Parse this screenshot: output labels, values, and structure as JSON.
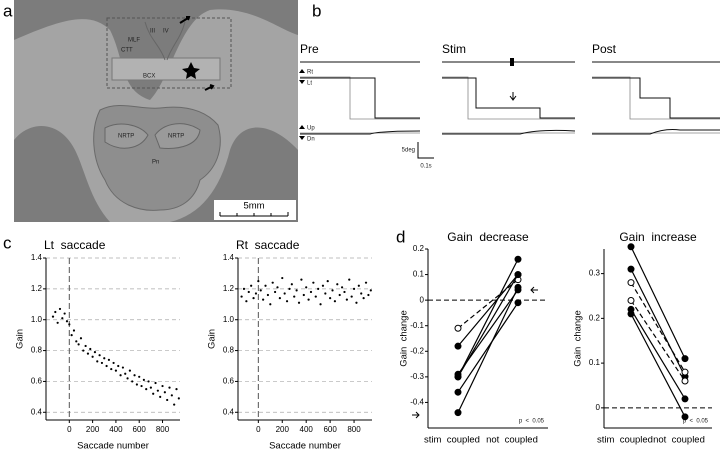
{
  "panel_labels": [
    "a",
    "b",
    "c",
    "d"
  ],
  "panel_a": {
    "regions": [
      "III",
      "IV",
      "MLF",
      "CTT",
      "BCX",
      "NRTP",
      "NRTP",
      "Pn"
    ],
    "scale_bar": "5mm"
  },
  "panel_b": {
    "conditions": [
      "Pre",
      "Stim",
      "Post"
    ],
    "horizontal_labels": [
      "Rt",
      "Lt"
    ],
    "vertical_labels": [
      "Up",
      "Dn"
    ],
    "scale_amplitude": "5deg",
    "scale_time": "0.1s"
  },
  "chart_data": [
    {
      "type": "scatter",
      "title": "Lt  saccade",
      "x_label": "Saccade number",
      "y_label": "Gain",
      "color": "#000000",
      "grid": true,
      "xlim": [
        -200,
        950
      ],
      "xticks": [
        0,
        200,
        400,
        600,
        800
      ],
      "ylim": [
        0.35,
        1.4
      ],
      "yticks": [
        0.4,
        0.6,
        0.8,
        {
          "value": 1,
          "label": "1.0"
        },
        1.2,
        1.4
      ],
      "x": [
        -140,
        -120,
        -100,
        -80,
        -60,
        -40,
        -20,
        0,
        20,
        40,
        60,
        80,
        100,
        120,
        140,
        160,
        180,
        200,
        220,
        240,
        260,
        280,
        300,
        320,
        340,
        360,
        380,
        400,
        420,
        440,
        460,
        480,
        500,
        520,
        540,
        560,
        580,
        600,
        620,
        640,
        660,
        680,
        700,
        720,
        740,
        760,
        780,
        800,
        820,
        840,
        860,
        880,
        900,
        920,
        940
      ],
      "values": [
        1.02,
        1.05,
        0.98,
        1.07,
        1.01,
        1.04,
        0.99,
        0.97,
        0.9,
        0.93,
        0.86,
        0.84,
        0.88,
        0.8,
        0.83,
        0.78,
        0.81,
        0.76,
        0.79,
        0.73,
        0.77,
        0.72,
        0.75,
        0.7,
        0.74,
        0.68,
        0.72,
        0.67,
        0.7,
        0.64,
        0.69,
        0.65,
        0.62,
        0.67,
        0.6,
        0.64,
        0.58,
        0.63,
        0.57,
        0.61,
        0.55,
        0.6,
        0.56,
        0.52,
        0.59,
        0.54,
        0.5,
        0.57,
        0.53,
        0.48,
        0.56,
        0.51,
        0.45,
        0.55,
        0.49
      ]
    },
    {
      "type": "scatter",
      "title": "Rt  saccade",
      "x_label": "Saccade number",
      "y_label": "Gain",
      "color": "#000000",
      "grid": true,
      "xlim": [
        -170,
        950
      ],
      "xticks": [
        0,
        200,
        400,
        600,
        800
      ],
      "ylim": [
        0.35,
        1.4
      ],
      "yticks": [
        0.4,
        0.6,
        0.8,
        {
          "value": 1,
          "label": "1.0"
        },
        1.2,
        1.4
      ],
      "x": [
        -140,
        -120,
        -100,
        -80,
        -60,
        -40,
        -20,
        0,
        20,
        40,
        60,
        80,
        100,
        120,
        140,
        160,
        180,
        200,
        220,
        240,
        260,
        280,
        300,
        320,
        340,
        360,
        380,
        400,
        420,
        440,
        460,
        480,
        500,
        520,
        540,
        560,
        580,
        600,
        620,
        640,
        660,
        680,
        700,
        720,
        740,
        760,
        780,
        800,
        820,
        840,
        860,
        880,
        900,
        920,
        940
      ],
      "values": [
        1.15,
        1.2,
        1.12,
        1.18,
        1.22,
        1.14,
        1.17,
        1.25,
        1.19,
        1.13,
        1.22,
        1.16,
        1.1,
        1.24,
        1.18,
        1.21,
        1.14,
        1.27,
        1.17,
        1.12,
        1.2,
        1.23,
        1.15,
        1.19,
        1.11,
        1.26,
        1.16,
        1.21,
        1.13,
        1.18,
        1.24,
        1.15,
        1.2,
        1.1,
        1.22,
        1.17,
        1.25,
        1.14,
        1.19,
        1.12,
        1.23,
        1.16,
        1.21,
        1.18,
        1.13,
        1.26,
        1.15,
        1.2,
        1.11,
        1.22,
        1.17,
        1.14,
        1.24,
        1.16,
        1.19
      ]
    },
    {
      "type": "line",
      "title": "Gain  decrease",
      "y_label": "Gain  change",
      "annotation": "p  <  0.05",
      "categories": [
        "stim  coupled",
        "not  coupled"
      ],
      "ylim": [
        -0.5,
        0.2
      ],
      "yticks": [
        -0.4,
        -0.3,
        -0.2,
        -0.1,
        0,
        0.1,
        0.2
      ],
      "series": [
        {
          "color": "#000000",
          "marker": "open",
          "dash": true,
          "values": [
            -0.11,
            0.08
          ]
        },
        {
          "color": "#000000",
          "marker": "filled",
          "dash": false,
          "values": [
            -0.18,
            0.1
          ]
        },
        {
          "color": "#000000",
          "marker": "filled",
          "dash": false,
          "values": [
            -0.29,
            0.04
          ]
        },
        {
          "color": "#000000",
          "marker": "filled",
          "dash": false,
          "values": [
            -0.3,
            0.16
          ]
        },
        {
          "color": "#000000",
          "marker": "filled",
          "dash": false,
          "values": [
            -0.36,
            -0.01
          ]
        },
        {
          "color": "#000000",
          "marker": "filled",
          "dash": false,
          "values": [
            -0.44,
            0.05
          ]
        },
        {
          "color": "#000000",
          "marker": "filled",
          "dash": false,
          "values": [
            -0.3,
            0.1
          ]
        }
      ]
    },
    {
      "type": "line",
      "title": "Gain  increase",
      "y_label": "Gain  change",
      "annotation": "p  <  0.05",
      "categories": [
        "stim  coupled",
        "not  coupled"
      ],
      "ylim": [
        -0.045,
        0.355
      ],
      "yticks": [
        0,
        0.1,
        0.2,
        0.3
      ],
      "series": [
        {
          "color": "#000000",
          "marker": "filled",
          "dash": false,
          "values": [
            0.36,
            0.11
          ]
        },
        {
          "color": "#000000",
          "marker": "filled",
          "dash": false,
          "values": [
            0.31,
            0.07
          ]
        },
        {
          "color": "#000000",
          "marker": "open",
          "dash": true,
          "values": [
            0.28,
            0.08
          ]
        },
        {
          "color": "#000000",
          "marker": "open",
          "dash": true,
          "values": [
            0.24,
            0.06
          ]
        },
        {
          "color": "#000000",
          "marker": "filled",
          "dash": false,
          "values": [
            0.22,
            0.02
          ]
        },
        {
          "color": "#000000",
          "marker": "filled",
          "dash": false,
          "values": [
            0.21,
            -0.02
          ]
        }
      ]
    }
  ]
}
